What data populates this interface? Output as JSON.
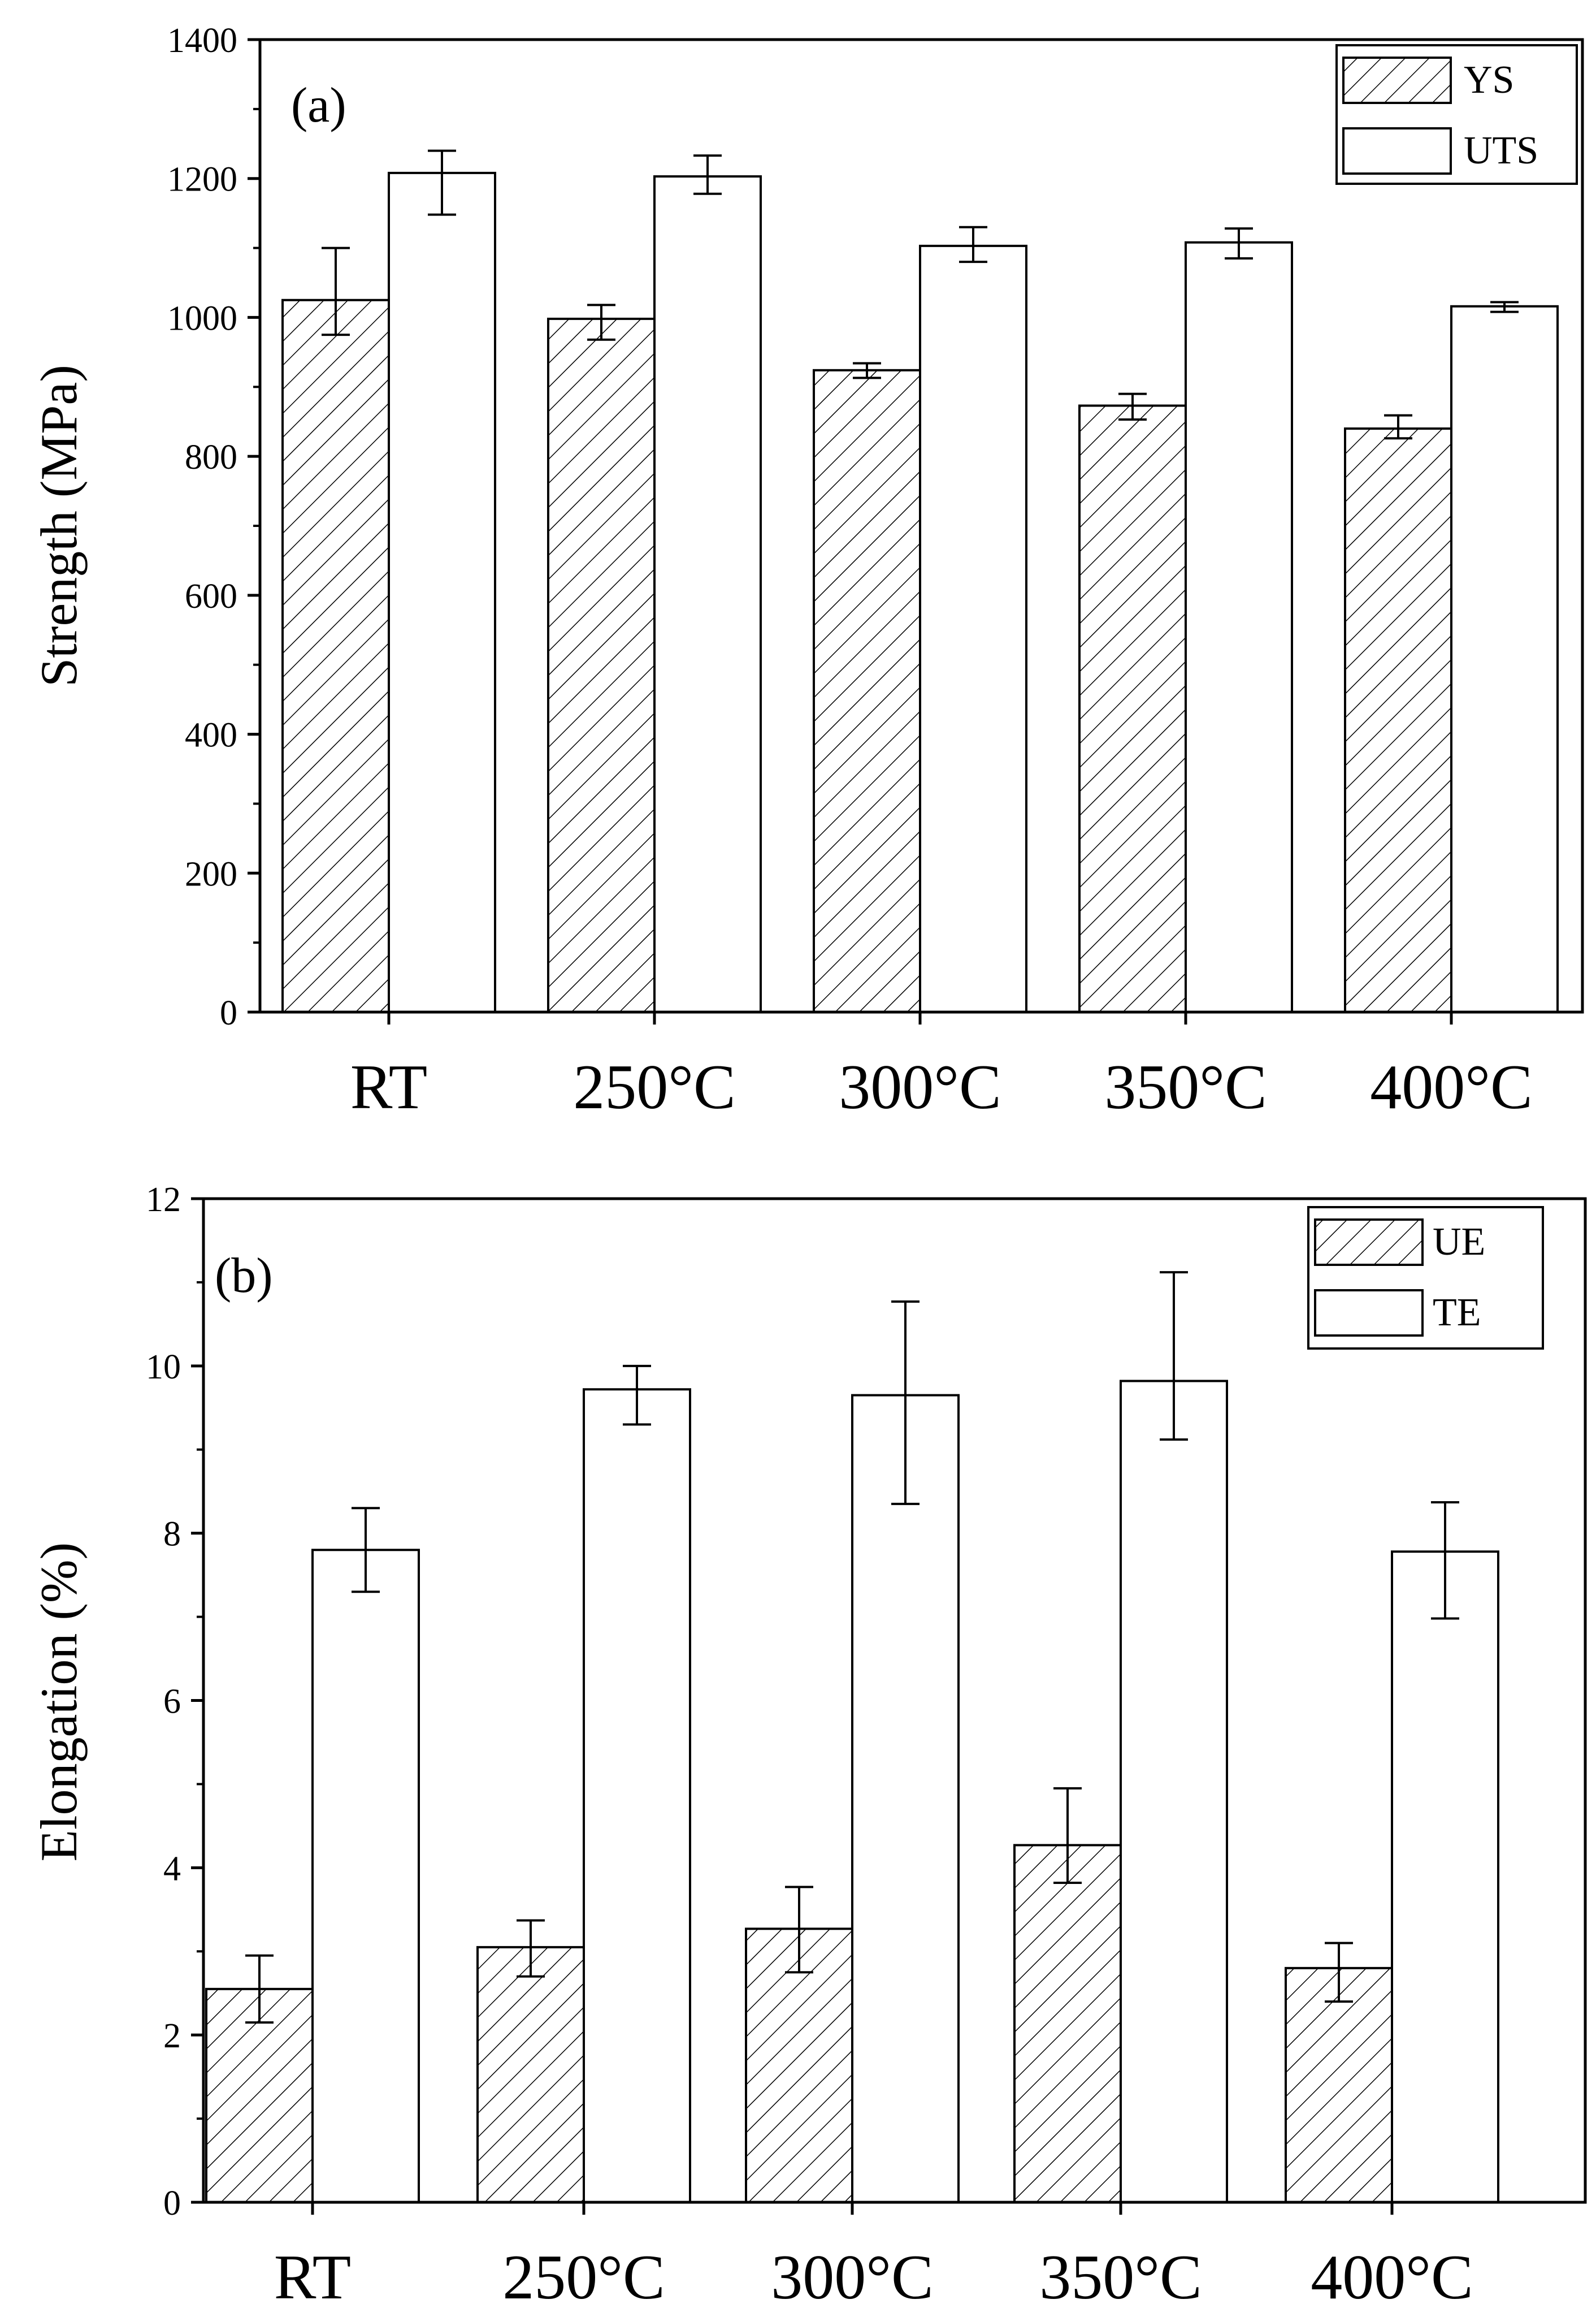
{
  "chart_data": [
    {
      "type": "bar",
      "panel_label": "(a)",
      "title": "",
      "xlabel": "",
      "ylabel": "Strength (MPa)",
      "categories": [
        "RT",
        "250°C",
        "300°C",
        "350°C",
        "400°C"
      ],
      "ylim": [
        0,
        1400
      ],
      "yticks": [
        0,
        200,
        400,
        600,
        800,
        1000,
        1200,
        1400
      ],
      "grid": false,
      "legend_position": "top-right",
      "series": [
        {
          "name": "YS",
          "fill": "hatched",
          "values": [
            1025,
            998,
            924,
            873,
            840
          ],
          "errors": [
            [
              975,
              1100
            ],
            [
              968,
              1018
            ],
            [
              913,
              934
            ],
            [
              853,
              890
            ],
            [
              826,
              859
            ]
          ]
        },
        {
          "name": "UTS",
          "fill": "white",
          "values": [
            1208,
            1203,
            1103,
            1108,
            1016
          ],
          "errors": [
            [
              1148,
              1240
            ],
            [
              1178,
              1233
            ],
            [
              1080,
              1130
            ],
            [
              1085,
              1128
            ],
            [
              1008,
              1022
            ]
          ]
        }
      ]
    },
    {
      "type": "bar",
      "panel_label": "(b)",
      "title": "",
      "xlabel": "",
      "ylabel": "Elongation (%)",
      "categories": [
        "RT",
        "250°C",
        "300°C",
        "350°C",
        "400°C"
      ],
      "ylim": [
        0,
        12
      ],
      "yticks": [
        0,
        2,
        4,
        6,
        8,
        10,
        12
      ],
      "grid": false,
      "legend_position": "top-right",
      "series": [
        {
          "name": "UE",
          "fill": "hatched",
          "values": [
            2.55,
            3.05,
            3.27,
            4.27,
            2.8
          ],
          "errors": [
            [
              2.15,
              2.95
            ],
            [
              2.7,
              3.37
            ],
            [
              2.75,
              3.77
            ],
            [
              3.82,
              4.95
            ],
            [
              2.4,
              3.1
            ]
          ]
        },
        {
          "name": "TE",
          "fill": "white",
          "values": [
            7.8,
            9.72,
            9.65,
            9.82,
            7.78
          ],
          "errors": [
            [
              7.3,
              8.3
            ],
            [
              9.3,
              10.0
            ],
            [
              8.35,
              10.77
            ],
            [
              9.12,
              11.12
            ],
            [
              6.98,
              8.37
            ]
          ]
        }
      ]
    }
  ]
}
